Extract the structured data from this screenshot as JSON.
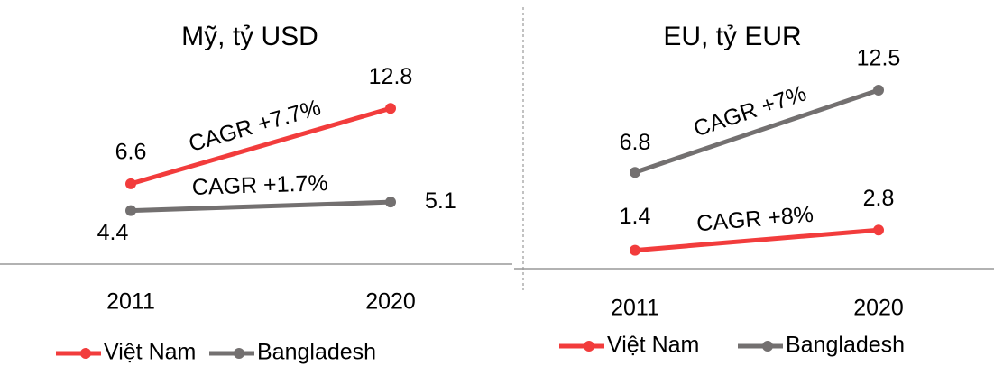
{
  "chart_data": [
    {
      "type": "line",
      "title": "Mỹ, tỷ USD",
      "categories": [
        "2011",
        "2020"
      ],
      "series": [
        {
          "name": "Việt Nam",
          "color": "#f23c3c",
          "values": [
            6.6,
            12.8
          ]
        },
        {
          "name": "Bangladesh",
          "color": "#737070",
          "values": [
            4.4,
            5.1
          ]
        }
      ],
      "annotations": [
        "CAGR +7.7%",
        "CAGR +1.7%"
      ],
      "ylim": [
        0,
        18
      ]
    },
    {
      "type": "line",
      "title": "EU, tỷ EUR",
      "categories": [
        "2011",
        "2020"
      ],
      "series": [
        {
          "name": "Việt Nam",
          "color": "#f23c3c",
          "values": [
            1.4,
            2.8
          ]
        },
        {
          "name": "Bangladesh",
          "color": "#737070",
          "values": [
            6.8,
            12.5
          ]
        }
      ],
      "annotations": [
        "CAGR +8%",
        "CAGR +7%"
      ],
      "ylim": [
        0,
        15
      ]
    }
  ]
}
